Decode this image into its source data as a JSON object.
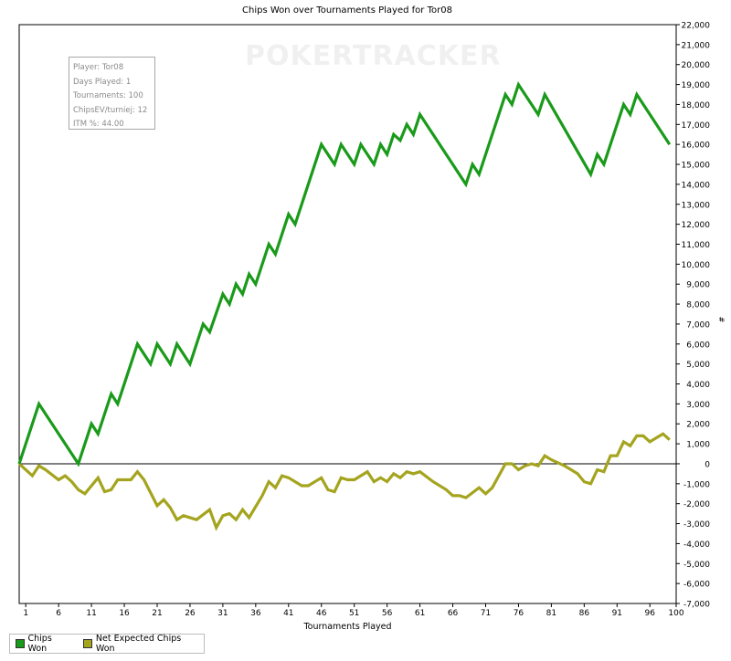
{
  "title": "Chips Won over Tournaments Played for Tor08",
  "watermark": "POKERTRACKER",
  "stats": {
    "player": "Player: Tor08",
    "days": "Days Played: 1",
    "tournaments": "Tournaments: 100",
    "chipsev": "ChipsEV/turniej: 12",
    "itm": "ITM %: 44.00"
  },
  "legend": {
    "chips_won": "Chips Won",
    "net_expected": "Net Expected Chips Won"
  },
  "chart_data": {
    "type": "line",
    "xlabel": "Tournaments Played",
    "ylabel": "#",
    "xlim": [
      0,
      100
    ],
    "ylim": [
      -7000,
      22000
    ],
    "x_ticks": [
      1,
      6,
      11,
      16,
      21,
      26,
      31,
      36,
      41,
      46,
      51,
      56,
      61,
      66,
      71,
      76,
      81,
      86,
      91,
      96,
      100
    ],
    "y_ticks": [
      22000,
      21000,
      20000,
      19000,
      18000,
      17000,
      16000,
      15000,
      14000,
      13000,
      12000,
      11000,
      10000,
      9000,
      8000,
      7000,
      6000,
      5000,
      4000,
      3000,
      2000,
      1000,
      0,
      -1000,
      -2000,
      -3000,
      -4000,
      -5000,
      -6000,
      -7000
    ],
    "y_tick_labels": [
      "22,000",
      "21,000",
      "20,000",
      "19,000",
      "18,000",
      "17,000",
      "16,000",
      "15,000",
      "14,000",
      "13,000",
      "12,000",
      "11,000",
      "10,000",
      "9,000",
      "8,000",
      "7,000",
      "6,000",
      "5,000",
      "4,000",
      "3,000",
      "2,000",
      "1,000",
      "0",
      "-1,000",
      "-2,000",
      "-3,000",
      "-4,000",
      "-5,000",
      "-6,000",
      "-7,000"
    ],
    "series": [
      {
        "name": "Chips Won",
        "color": "#1a9a1a",
        "points": [
          [
            0,
            0
          ],
          [
            3,
            3000
          ],
          [
            9,
            0
          ],
          [
            11,
            2000
          ],
          [
            12,
            1500
          ],
          [
            14,
            3500
          ],
          [
            15,
            3000
          ],
          [
            18,
            6000
          ],
          [
            20,
            5000
          ],
          [
            21,
            6000
          ],
          [
            23,
            5000
          ],
          [
            24,
            6000
          ],
          [
            26,
            5000
          ],
          [
            28,
            7000
          ],
          [
            29,
            6600
          ],
          [
            31,
            8500
          ],
          [
            32,
            8000
          ],
          [
            33,
            9000
          ],
          [
            34,
            8500
          ],
          [
            35,
            9500
          ],
          [
            36,
            9000
          ],
          [
            38,
            11000
          ],
          [
            39,
            10500
          ],
          [
            41,
            12500
          ],
          [
            42,
            12000
          ],
          [
            46,
            16000
          ],
          [
            48,
            15000
          ],
          [
            49,
            16000
          ],
          [
            51,
            15000
          ],
          [
            52,
            16000
          ],
          [
            54,
            15000
          ],
          [
            55,
            16000
          ],
          [
            56,
            15500
          ],
          [
            57,
            16500
          ],
          [
            58,
            16200
          ],
          [
            59,
            17000
          ],
          [
            60,
            16500
          ],
          [
            61,
            17500
          ],
          [
            68,
            14000
          ],
          [
            69,
            15000
          ],
          [
            70,
            14500
          ],
          [
            74,
            18500
          ],
          [
            75,
            18000
          ],
          [
            76,
            19000
          ],
          [
            79,
            17500
          ],
          [
            80,
            18500
          ],
          [
            87,
            14500
          ],
          [
            88,
            15500
          ],
          [
            89,
            15000
          ],
          [
            92,
            18000
          ],
          [
            93,
            17500
          ],
          [
            94,
            18500
          ],
          [
            99,
            16000
          ]
        ]
      },
      {
        "name": "Net Expected Chips Won",
        "color": "#a4a41f",
        "points": [
          [
            0,
            0
          ],
          [
            2,
            -600
          ],
          [
            3,
            -100
          ],
          [
            4,
            -300
          ],
          [
            6,
            -800
          ],
          [
            7,
            -600
          ],
          [
            8,
            -900
          ],
          [
            9,
            -1300
          ],
          [
            10,
            -1500
          ],
          [
            12,
            -700
          ],
          [
            13,
            -1400
          ],
          [
            14,
            -1300
          ],
          [
            15,
            -800
          ],
          [
            17,
            -800
          ],
          [
            18,
            -400
          ],
          [
            19,
            -800
          ],
          [
            21,
            -2100
          ],
          [
            22,
            -1800
          ],
          [
            23,
            -2200
          ],
          [
            24,
            -2800
          ],
          [
            25,
            -2600
          ],
          [
            27,
            -2800
          ],
          [
            29,
            -2300
          ],
          [
            30,
            -3200
          ],
          [
            31,
            -2600
          ],
          [
            32,
            -2500
          ],
          [
            33,
            -2800
          ],
          [
            34,
            -2300
          ],
          [
            35,
            -2700
          ],
          [
            37,
            -1600
          ],
          [
            38,
            -900
          ],
          [
            39,
            -1200
          ],
          [
            40,
            -600
          ],
          [
            41,
            -700
          ],
          [
            42,
            -900
          ],
          [
            43,
            -1100
          ],
          [
            44,
            -1100
          ],
          [
            46,
            -700
          ],
          [
            47,
            -1300
          ],
          [
            48,
            -1400
          ],
          [
            49,
            -700
          ],
          [
            50,
            -800
          ],
          [
            51,
            -800
          ],
          [
            53,
            -400
          ],
          [
            54,
            -900
          ],
          [
            55,
            -700
          ],
          [
            56,
            -900
          ],
          [
            57,
            -500
          ],
          [
            58,
            -700
          ],
          [
            59,
            -400
          ],
          [
            60,
            -500
          ],
          [
            61,
            -400
          ],
          [
            63,
            -900
          ],
          [
            65,
            -1300
          ],
          [
            66,
            -1600
          ],
          [
            67,
            -1600
          ],
          [
            68,
            -1700
          ],
          [
            70,
            -1200
          ],
          [
            71,
            -1500
          ],
          [
            72,
            -1200
          ],
          [
            74,
            0
          ],
          [
            75,
            0
          ],
          [
            76,
            -300
          ],
          [
            77,
            -100
          ],
          [
            78,
            0
          ],
          [
            79,
            -100
          ],
          [
            80,
            400
          ],
          [
            81,
            200
          ],
          [
            83,
            -100
          ],
          [
            84,
            -300
          ],
          [
            85,
            -500
          ],
          [
            86,
            -900
          ],
          [
            87,
            -1000
          ],
          [
            88,
            -300
          ],
          [
            89,
            -400
          ],
          [
            90,
            400
          ],
          [
            91,
            400
          ],
          [
            92,
            1100
          ],
          [
            93,
            900
          ],
          [
            94,
            1400
          ],
          [
            95,
            1400
          ],
          [
            96,
            1100
          ],
          [
            97,
            1300
          ],
          [
            98,
            1500
          ],
          [
            99,
            1200
          ]
        ]
      }
    ]
  }
}
